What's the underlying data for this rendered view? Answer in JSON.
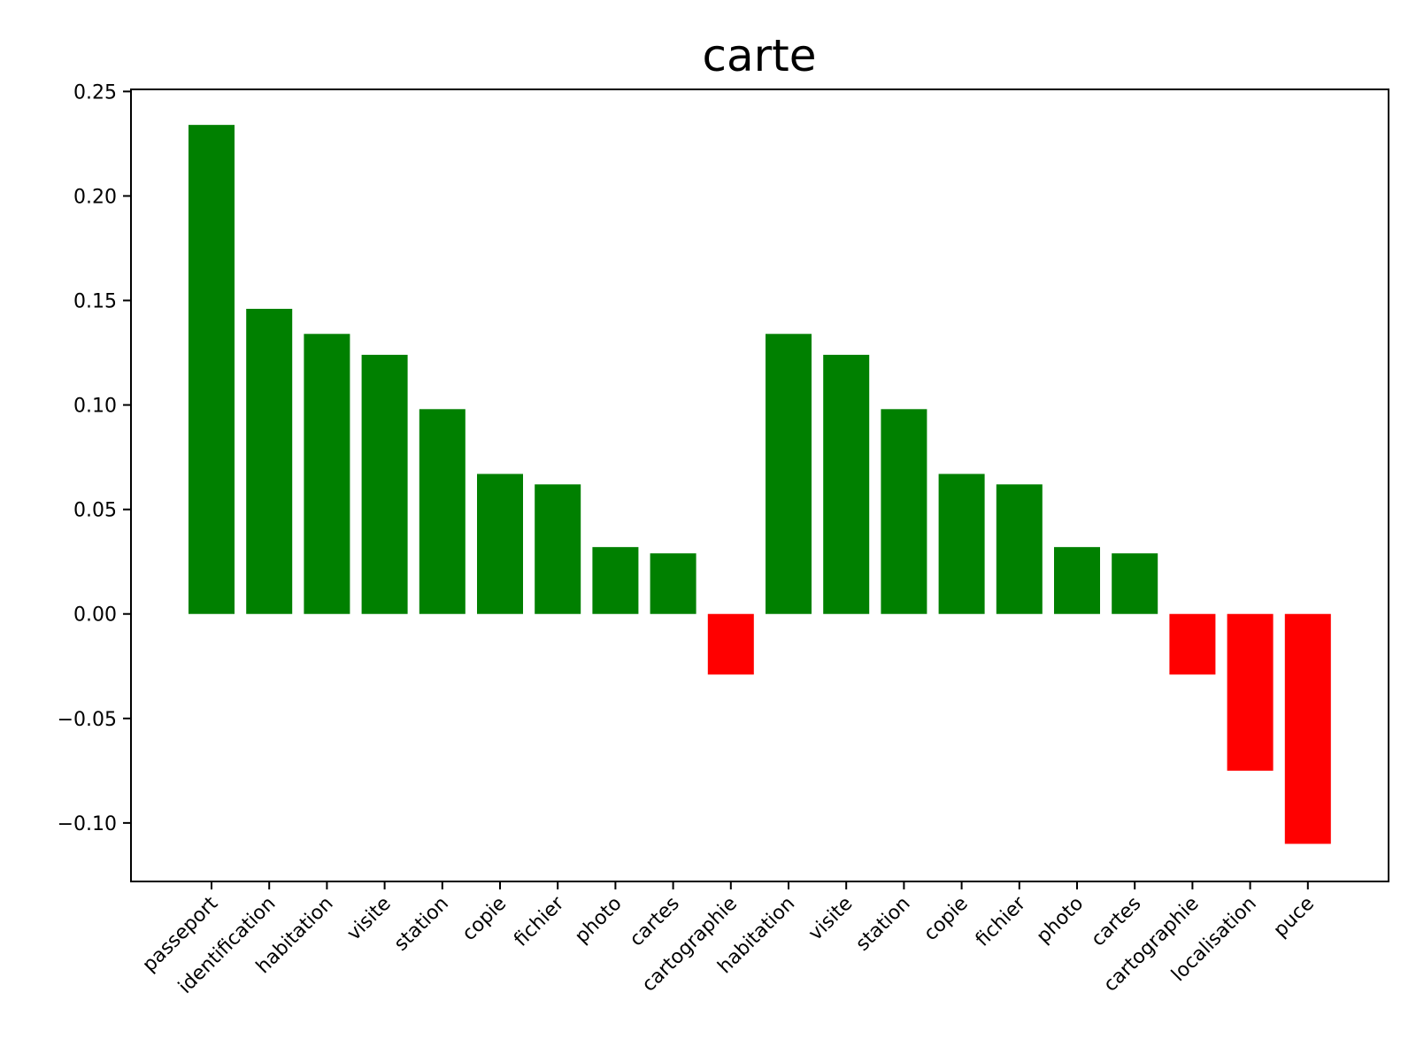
{
  "chart_data": {
    "type": "bar",
    "title": "carte",
    "xlabel": "",
    "ylabel": "",
    "ylim": [
      -0.128,
      0.251
    ],
    "yticks": [
      -0.1,
      -0.05,
      0.0,
      0.05,
      0.1,
      0.15,
      0.2,
      0.25
    ],
    "ytick_labels": [
      "−0.10",
      "−0.05",
      "0.00",
      "0.05",
      "0.10",
      "0.15",
      "0.20",
      "0.25"
    ],
    "grid": false,
    "categories": [
      "passeport",
      "identification",
      "habitation",
      "visite",
      "station",
      "copie",
      "fichier",
      "photo",
      "cartes",
      "cartographie",
      "habitation",
      "visite",
      "station",
      "copie",
      "fichier",
      "photo",
      "cartes",
      "cartographie",
      "localisation",
      "puce"
    ],
    "values": [
      0.234,
      0.146,
      0.134,
      0.124,
      0.098,
      0.067,
      0.062,
      0.032,
      0.029,
      -0.029,
      0.134,
      0.124,
      0.098,
      0.067,
      0.062,
      0.032,
      0.029,
      -0.029,
      -0.075,
      -0.11
    ],
    "colors": {
      "positive": "#008000",
      "negative": "#ff0000"
    }
  }
}
